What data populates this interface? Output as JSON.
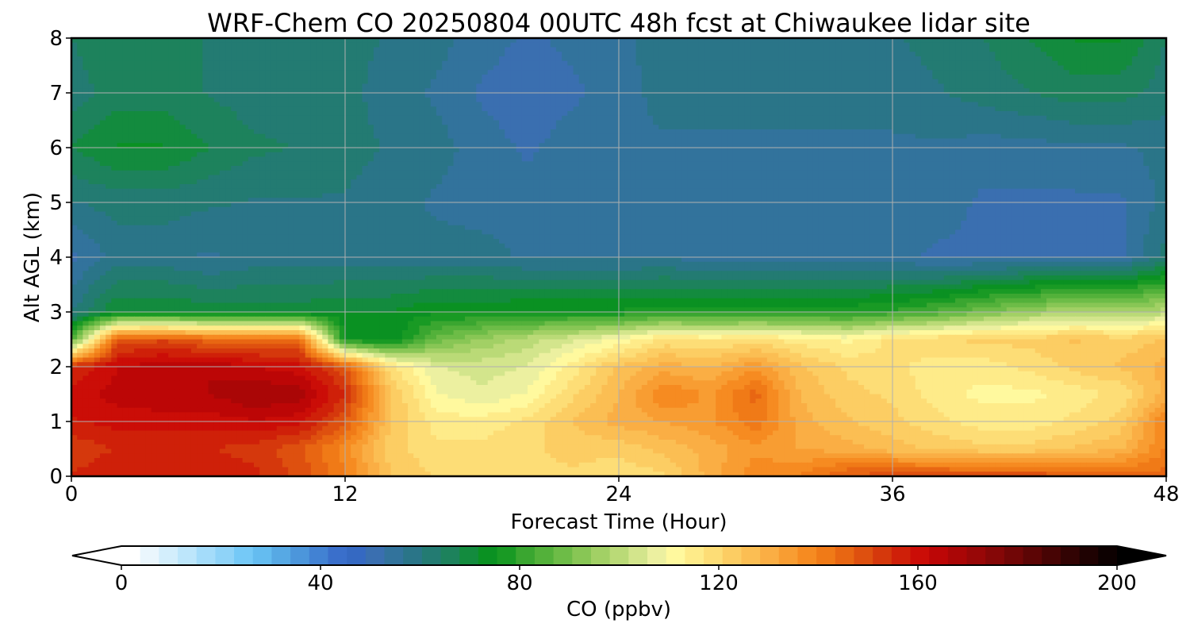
{
  "chart_data": {
    "type": "heatmap",
    "title": "WRF-Chem CO  20250804 00UTC 48h fcst at Chiwaukee lidar site",
    "xlabel": "Forecast Time (Hour)",
    "ylabel": "Alt AGL (km)",
    "xlim": [
      0,
      48
    ],
    "ylim": [
      0,
      8
    ],
    "x_ticks": [
      0,
      12,
      24,
      36,
      48
    ],
    "y_ticks": [
      0,
      1,
      2,
      3,
      4,
      5,
      6,
      7,
      8
    ],
    "grid": true,
    "x_hours": [
      0,
      2,
      4,
      6,
      8,
      10,
      12,
      14,
      16,
      18,
      20,
      22,
      24,
      26,
      28,
      30,
      32,
      34,
      36,
      38,
      40,
      42,
      44,
      46,
      48
    ],
    "z_km": [
      0,
      0.5,
      1,
      1.5,
      2,
      2.5,
      3,
      4,
      5,
      6,
      7,
      8
    ],
    "co_ppbv": [
      [
        155,
        158,
        158,
        158,
        156,
        150,
        140,
        125,
        120,
        118,
        120,
        120,
        118,
        120,
        130,
        138,
        140,
        148,
        150,
        150,
        150,
        150,
        148,
        145,
        145
      ],
      [
        152,
        155,
        155,
        155,
        153,
        148,
        138,
        122,
        118,
        118,
        120,
        122,
        122,
        126,
        130,
        135,
        132,
        130,
        126,
        124,
        122,
        122,
        125,
        128,
        140
      ],
      [
        158,
        160,
        160,
        160,
        162,
        160,
        148,
        125,
        115,
        115,
        118,
        125,
        130,
        132,
        135,
        142,
        130,
        125,
        122,
        118,
        115,
        115,
        118,
        122,
        140
      ],
      [
        160,
        164,
        166,
        166,
        170,
        168,
        155,
        125,
        110,
        106,
        110,
        120,
        128,
        140,
        135,
        145,
        128,
        122,
        120,
        115,
        112,
        112,
        115,
        118,
        130
      ],
      [
        155,
        162,
        165,
        166,
        162,
        160,
        148,
        118,
        106,
        104,
        106,
        115,
        125,
        130,
        128,
        135,
        125,
        120,
        118,
        115,
        115,
        118,
        122,
        125,
        130
      ],
      [
        85,
        148,
        150,
        145,
        145,
        145,
        75,
        72,
        88,
        95,
        100,
        105,
        110,
        118,
        116,
        118,
        115,
        112,
        118,
        120,
        122,
        122,
        125,
        122,
        125
      ],
      [
        60,
        72,
        72,
        70,
        70,
        70,
        72,
        72,
        75,
        75,
        76,
        76,
        76,
        78,
        78,
        78,
        78,
        78,
        80,
        84,
        90,
        95,
        98,
        98,
        100
      ],
      [
        52,
        58,
        58,
        56,
        58,
        58,
        58,
        58,
        58,
        58,
        56,
        56,
        56,
        56,
        55,
        55,
        54,
        54,
        54,
        52,
        52,
        52,
        52,
        52,
        62
      ],
      [
        60,
        62,
        62,
        61,
        60,
        60,
        60,
        58,
        56,
        55,
        55,
        55,
        55,
        55,
        55,
        55,
        55,
        55,
        55,
        55,
        52,
        52,
        52,
        52,
        58
      ],
      [
        68,
        72,
        72,
        68,
        65,
        64,
        62,
        60,
        58,
        55,
        52,
        55,
        56,
        56,
        56,
        56,
        56,
        56,
        56,
        56,
        55,
        55,
        56,
        56,
        58
      ],
      [
        62,
        66,
        66,
        64,
        62,
        62,
        62,
        58,
        56,
        52,
        50,
        52,
        55,
        58,
        58,
        58,
        58,
        58,
        58,
        60,
        62,
        64,
        66,
        66,
        62
      ],
      [
        64,
        68,
        66,
        64,
        62,
        62,
        62,
        60,
        58,
        55,
        52,
        54,
        56,
        58,
        60,
        60,
        60,
        60,
        60,
        62,
        64,
        68,
        72,
        72,
        64
      ]
    ],
    "colorbar": {
      "label": "CO  (ppbv)",
      "ticks": [
        0,
        40,
        80,
        120,
        160,
        200
      ],
      "min": 0,
      "max": 200,
      "extend": "both",
      "colors": [
        "#ffffff",
        "#eaf6fd",
        "#d3eefc",
        "#bde6fb",
        "#a4dcfa",
        "#8fd3f8",
        "#75c9f7",
        "#64bcf0",
        "#57a9e4",
        "#4c96db",
        "#4282d3",
        "#3a6fcb",
        "#3569c2",
        "#3a6fb0",
        "#32739c",
        "#2a7588",
        "#237b72",
        "#1d825c",
        "#138b3e",
        "#0a9122",
        "#199a24",
        "#3aa630",
        "#53b13a",
        "#6dbc47",
        "#88c655",
        "#a2d065",
        "#bada77",
        "#d3e58c",
        "#ecf0a0",
        "#fff99e",
        "#feeb89",
        "#fddd76",
        "#fccd63",
        "#fbbe53",
        "#faae44",
        "#f89d32",
        "#f68b21",
        "#f07a17",
        "#e86612",
        "#de500f",
        "#d5380c",
        "#cf2009",
        "#cb0d07",
        "#bc0606",
        "#aa0606",
        "#980707",
        "#850707",
        "#710606",
        "#5c0505",
        "#470404",
        "#320303",
        "#1f0202",
        "#0d0101"
      ],
      "under_color": "#ffffff",
      "over_color": "#000000"
    }
  }
}
